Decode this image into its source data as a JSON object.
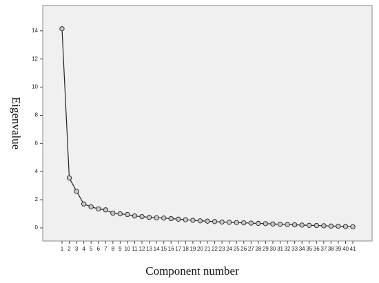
{
  "chart_data": {
    "type": "line",
    "x_label": "Component number",
    "y_label": "Eigenvalue",
    "x": [
      1,
      2,
      3,
      4,
      5,
      6,
      7,
      8,
      9,
      10,
      11,
      12,
      13,
      14,
      15,
      16,
      17,
      18,
      19,
      20,
      21,
      22,
      23,
      24,
      25,
      26,
      27,
      28,
      29,
      30,
      31,
      32,
      33,
      34,
      35,
      36,
      37,
      38,
      39,
      40,
      41
    ],
    "values": [
      14.15,
      3.55,
      2.6,
      1.7,
      1.5,
      1.35,
      1.28,
      1.05,
      1.0,
      0.95,
      0.85,
      0.8,
      0.75,
      0.72,
      0.7,
      0.66,
      0.62,
      0.58,
      0.54,
      0.5,
      0.48,
      0.45,
      0.42,
      0.4,
      0.38,
      0.36,
      0.34,
      0.32,
      0.3,
      0.28,
      0.26,
      0.24,
      0.22,
      0.2,
      0.18,
      0.17,
      0.15,
      0.13,
      0.12,
      0.1,
      0.08
    ],
    "color": "#222222",
    "xlim": [
      -1.65,
      43.65
    ],
    "xticks": [
      1,
      2,
      3,
      4,
      5,
      6,
      7,
      8,
      9,
      10,
      11,
      12,
      13,
      14,
      15,
      16,
      17,
      18,
      19,
      20,
      21,
      22,
      23,
      24,
      25,
      26,
      27,
      28,
      29,
      30,
      31,
      32,
      33,
      34,
      35,
      36,
      37,
      38,
      39,
      40,
      41
    ],
    "ylim": [
      -0.93,
      15.8
    ],
    "yticks": [
      0,
      2,
      4,
      6,
      8,
      10,
      12,
      14
    ]
  }
}
